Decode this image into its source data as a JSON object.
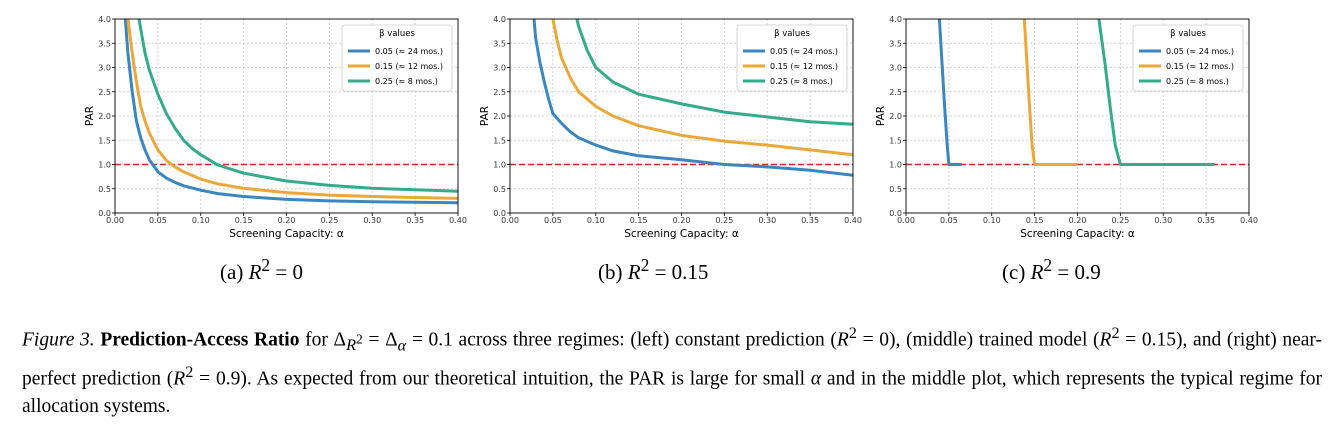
{
  "figure": {
    "caption": {
      "figure_label": "Figure 3.",
      "bold_title": "Prediction-Access Ratio",
      "text_1": " for Δ",
      "sub_1": "R",
      "sup_1": "2",
      "text_2": " = Δ",
      "sub_2": "α",
      "text_3": " = 0.1 across three regimes: (left) constant prediction (",
      "ital_R_1": "R",
      "sup_2": "2",
      "text_4": " = 0), (middle) trained model (",
      "ital_R_2": "R",
      "sup_3": "2",
      "text_5": " = 0.15), and (right) near-perfect prediction (",
      "ital_R_3": "R",
      "sup_4": "2",
      "text_6": " = 0.9). As expected from our theoretical intuition, the PAR is large for small ",
      "ital_alpha": "α",
      "text_7": " and in the middle plot, which represents the typical regime for allocation systems."
    },
    "colors": {
      "s1": "#3a87c0",
      "s2": "#eba83a",
      "s3": "#34ab8a",
      "ref": "#d62728",
      "grid": "#c8c8c8"
    }
  },
  "chart_data": [
    {
      "type": "line",
      "subcaption": {
        "label": "(a) ",
        "var": "R",
        "sup": "2",
        "rest": " = 0"
      },
      "xlabel": "Screening Capacity: α",
      "ylabel": "PAR",
      "xlim": [
        0.0,
        0.4
      ],
      "ylim": [
        0.0,
        4.0
      ],
      "xticks": [
        "0.00",
        "0.05",
        "0.10",
        "0.15",
        "0.20",
        "0.25",
        "0.30",
        "0.35",
        "0.40"
      ],
      "yticks": [
        "0.0",
        "0.5",
        "1.0",
        "1.5",
        "2.0",
        "2.5",
        "3.0",
        "3.5",
        "4.0"
      ],
      "grid": true,
      "reference_line": 1.0,
      "legend": {
        "placement": "top-right",
        "title": "β values"
      },
      "series": [
        {
          "name": "0.05 (≈ 24 mos.)",
          "color_key": "s1",
          "x": [
            0.012,
            0.015,
            0.02,
            0.025,
            0.03,
            0.035,
            0.04,
            0.05,
            0.06,
            0.07,
            0.08,
            0.1,
            0.12,
            0.15,
            0.2,
            0.25,
            0.3,
            0.35,
            0.4
          ],
          "y": [
            4.0,
            3.3,
            2.5,
            1.9,
            1.55,
            1.3,
            1.1,
            0.85,
            0.72,
            0.63,
            0.56,
            0.47,
            0.4,
            0.34,
            0.28,
            0.25,
            0.23,
            0.22,
            0.21
          ]
        },
        {
          "name": "0.15 (≈ 12 mos.)",
          "color_key": "s2",
          "x": [
            0.015,
            0.02,
            0.025,
            0.03,
            0.035,
            0.04,
            0.05,
            0.06,
            0.07,
            0.08,
            0.1,
            0.12,
            0.15,
            0.2,
            0.25,
            0.3,
            0.35,
            0.4
          ],
          "y": [
            4.0,
            3.3,
            2.7,
            2.2,
            1.9,
            1.65,
            1.3,
            1.08,
            0.95,
            0.85,
            0.7,
            0.6,
            0.51,
            0.42,
            0.37,
            0.34,
            0.32,
            0.3
          ]
        },
        {
          "name": "0.25 (≈ 8 mos.)",
          "color_key": "s3",
          "x": [
            0.028,
            0.03,
            0.035,
            0.04,
            0.05,
            0.06,
            0.07,
            0.08,
            0.09,
            0.1,
            0.12,
            0.15,
            0.2,
            0.25,
            0.3,
            0.35,
            0.4
          ],
          "y": [
            4.0,
            3.8,
            3.3,
            2.95,
            2.45,
            2.05,
            1.75,
            1.5,
            1.33,
            1.2,
            0.99,
            0.82,
            0.66,
            0.57,
            0.51,
            0.48,
            0.45
          ]
        }
      ]
    },
    {
      "type": "line",
      "subcaption": {
        "label": "(b) ",
        "var": "R",
        "sup": "2",
        "rest": " = 0.15"
      },
      "xlabel": "Screening Capacity: α",
      "ylabel": "PAR",
      "xlim": [
        0.0,
        0.4
      ],
      "ylim": [
        0.0,
        4.0
      ],
      "xticks": [
        "0.00",
        "0.05",
        "0.10",
        "0.15",
        "0.20",
        "0.25",
        "0.30",
        "0.35",
        "0.40"
      ],
      "yticks": [
        "0.0",
        "0.5",
        "1.0",
        "1.5",
        "2.0",
        "2.5",
        "3.0",
        "3.5",
        "4.0"
      ],
      "grid": true,
      "reference_line": 1.0,
      "legend": {
        "placement": "top-right",
        "title": "β values"
      },
      "series": [
        {
          "name": "0.05 (≈ 24 mos.)",
          "color_key": "s1",
          "x": [
            0.028,
            0.03,
            0.035,
            0.04,
            0.045,
            0.05,
            0.06,
            0.07,
            0.08,
            0.1,
            0.12,
            0.15,
            0.2,
            0.25,
            0.3,
            0.35,
            0.4
          ],
          "y": [
            4.0,
            3.6,
            3.1,
            2.7,
            2.35,
            2.05,
            1.85,
            1.68,
            1.55,
            1.4,
            1.28,
            1.18,
            1.1,
            1.0,
            0.95,
            0.88,
            0.78
          ]
        },
        {
          "name": "0.15 (≈ 12 mos.)",
          "color_key": "s2",
          "x": [
            0.05,
            0.055,
            0.06,
            0.07,
            0.08,
            0.1,
            0.12,
            0.15,
            0.2,
            0.25,
            0.3,
            0.35,
            0.4
          ],
          "y": [
            4.0,
            3.55,
            3.2,
            2.8,
            2.5,
            2.2,
            2.0,
            1.8,
            1.6,
            1.48,
            1.4,
            1.3,
            1.2
          ]
        },
        {
          "name": "0.25 (≈ 8 mos.)",
          "color_key": "s3",
          "x": [
            0.078,
            0.08,
            0.085,
            0.09,
            0.1,
            0.12,
            0.15,
            0.2,
            0.25,
            0.3,
            0.35,
            0.4
          ],
          "y": [
            4.0,
            3.85,
            3.6,
            3.35,
            3.0,
            2.7,
            2.45,
            2.25,
            2.08,
            1.98,
            1.88,
            1.83
          ]
        }
      ]
    },
    {
      "type": "line",
      "subcaption": {
        "label": "(c) ",
        "var": "R",
        "sup": "2",
        "rest": " = 0.9"
      },
      "xlabel": "Screening Capacity: α",
      "ylabel": "PAR",
      "xlim": [
        0.0,
        0.4
      ],
      "ylim": [
        0.0,
        4.0
      ],
      "xticks": [
        "0.00",
        "0.05",
        "0.10",
        "0.15",
        "0.20",
        "0.25",
        "0.30",
        "0.35",
        "0.40"
      ],
      "yticks": [
        "0.0",
        "0.5",
        "1.0",
        "1.5",
        "2.0",
        "2.5",
        "3.0",
        "3.5",
        "4.0"
      ],
      "grid": true,
      "reference_line": 1.0,
      "legend": {
        "placement": "top-right",
        "title": "β values"
      },
      "series": [
        {
          "name": "0.05 (≈ 24 mos.)",
          "color_key": "s1",
          "x": [
            0.039,
            0.042,
            0.045,
            0.048,
            0.05,
            0.055,
            0.065
          ],
          "y": [
            4.0,
            3.1,
            2.2,
            1.4,
            1.0,
            1.0,
            1.0
          ]
        },
        {
          "name": "0.15 (≈ 12 mos.)",
          "color_key": "s2",
          "x": [
            0.138,
            0.141,
            0.144,
            0.147,
            0.15,
            0.16,
            0.2
          ],
          "y": [
            4.0,
            3.1,
            2.2,
            1.4,
            1.0,
            1.0,
            1.0
          ]
        },
        {
          "name": "0.25 (≈ 8 mos.)",
          "color_key": "s3",
          "x": [
            0.225,
            0.232,
            0.238,
            0.244,
            0.25,
            0.27,
            0.36
          ],
          "y": [
            4.0,
            3.1,
            2.2,
            1.4,
            1.0,
            1.0,
            1.0
          ]
        }
      ]
    }
  ]
}
